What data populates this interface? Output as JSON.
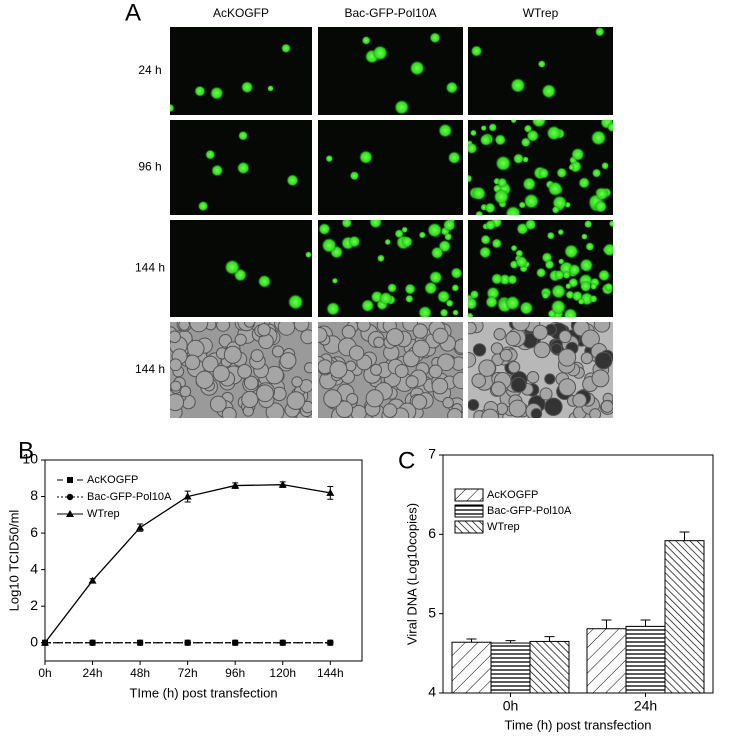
{
  "panel_a": {
    "panel": "A",
    "columns": [
      "AcKOGFP",
      "Bac-GFP-Pol10A",
      "WTrep"
    ],
    "rows": [
      "24 h",
      "96 h",
      "144 h",
      "144 h"
    ]
  },
  "chart_data": [
    {
      "type": "line",
      "panel": "B",
      "xlabel": "TIme (h) post transfection",
      "ylabel": "Log10 TCID50/ml",
      "x": [
        0,
        24,
        48,
        72,
        96,
        120,
        144
      ],
      "xlim": [
        0,
        160
      ],
      "xticks": [
        {
          "value": 0,
          "label": "0h"
        },
        {
          "value": 24,
          "label": "24h"
        },
        {
          "value": 48,
          "label": "48h"
        },
        {
          "value": 72,
          "label": "72h"
        },
        {
          "value": 96,
          "label": "96h"
        },
        {
          "value": 120,
          "label": "120h"
        },
        {
          "value": 144,
          "label": "144h"
        }
      ],
      "ylim": [
        -1,
        10
      ],
      "yticks": [
        0,
        2,
        4,
        6,
        8,
        10
      ],
      "legend": "upper left",
      "series": [
        {
          "name": "AcKOGFP",
          "color": "#000000",
          "linestyle": "dashed",
          "marker": "square",
          "values": [
            0,
            0,
            0,
            0,
            0,
            0,
            0
          ]
        },
        {
          "name": "Bac-GFP-Pol10A",
          "color": "#000000",
          "linestyle": "dotted",
          "marker": "circle",
          "values": [
            0,
            0,
            0,
            0,
            0,
            0,
            0
          ]
        },
        {
          "name": "WTrep",
          "color": "#000000",
          "linestyle": "solid",
          "marker": "triangle",
          "values": [
            0,
            3.4,
            6.3,
            8.0,
            8.6,
            8.65,
            8.2
          ],
          "errors": [
            0,
            0.1,
            0.2,
            0.3,
            0.15,
            0.15,
            0.35
          ]
        }
      ]
    },
    {
      "type": "bar",
      "panel": "C",
      "xlabel": "Time (h) post transfection",
      "ylabel": "Viral DNA (Log10copies)",
      "categories": [
        "0h",
        "24h"
      ],
      "ylim": [
        4,
        7
      ],
      "yticks": [
        4,
        5,
        6,
        7
      ],
      "legend": "upper left",
      "series": [
        {
          "name": "AcKOGFP",
          "color": "#000000",
          "hatch": "backslash",
          "values": [
            4.64,
            4.81
          ],
          "errors": [
            0.04,
            0.11
          ]
        },
        {
          "name": "Bac-GFP-Pol10A",
          "color": "#000000",
          "hatch": "horizontal",
          "values": [
            4.63,
            4.84
          ],
          "errors": [
            0.03,
            0.08
          ]
        },
        {
          "name": "WTrep",
          "color": "#000000",
          "hatch": "slash",
          "values": [
            4.65,
            5.92
          ],
          "errors": [
            0.06,
            0.11
          ]
        }
      ]
    }
  ]
}
